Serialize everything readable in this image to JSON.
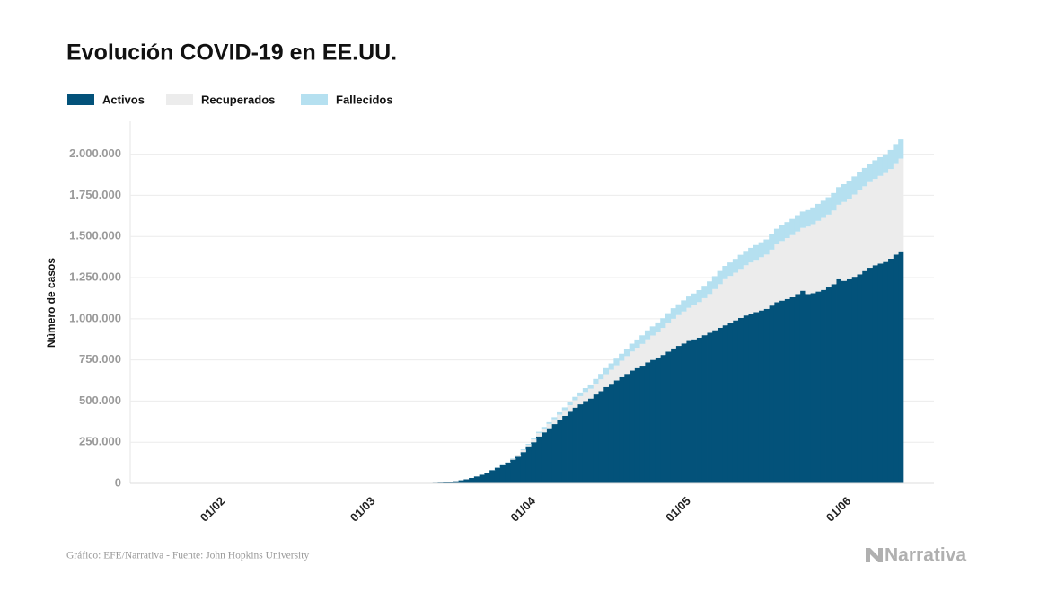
{
  "chart_data": {
    "type": "stacked_step_area",
    "title": "Evolución COVID-19 en EE.UU.",
    "y_label": "Número de casos",
    "source": "Gráfico: EFE/Narrativa - Fuente: John Hopkins University",
    "logo": "Narrativa",
    "grid": true,
    "ylim": [
      0,
      2200000
    ],
    "yticks": [
      0,
      {
        "value": 250000,
        "label": "250.000"
      },
      {
        "value": 500000,
        "label": "500.000"
      },
      {
        "value": 750000,
        "label": "750.000"
      },
      {
        "value": 1000000,
        "label": "1.000.000"
      },
      {
        "value": 1250000,
        "label": "1.250.000"
      },
      {
        "value": 1500000,
        "label": "1.500.000"
      },
      {
        "value": 1750000,
        "label": "1.750.000"
      },
      {
        "value": 2000000,
        "label": "2.000.000"
      }
    ],
    "categories": [
      null,
      null,
      null,
      null,
      null,
      null,
      null,
      null,
      null,
      null,
      "01/02",
      null,
      null,
      null,
      null,
      null,
      null,
      null,
      null,
      null,
      null,
      null,
      null,
      null,
      null,
      null,
      null,
      null,
      null,
      null,
      null,
      null,
      null,
      null,
      null,
      null,
      null,
      null,
      null,
      "01/03",
      null,
      null,
      null,
      null,
      null,
      null,
      null,
      null,
      null,
      null,
      null,
      null,
      null,
      null,
      null,
      null,
      null,
      null,
      null,
      null,
      null,
      null,
      null,
      null,
      null,
      null,
      null,
      null,
      null,
      null,
      "01/04",
      null,
      null,
      null,
      null,
      null,
      null,
      null,
      null,
      null,
      null,
      null,
      null,
      null,
      null,
      null,
      null,
      null,
      null,
      null,
      null,
      null,
      null,
      null,
      null,
      null,
      null,
      null,
      null,
      null,
      "01/05",
      null,
      null,
      null,
      null,
      null,
      null,
      null,
      null,
      null,
      null,
      null,
      null,
      null,
      null,
      null,
      null,
      null,
      null,
      null,
      null,
      null,
      null,
      null,
      null,
      null,
      null,
      null,
      null,
      null,
      null,
      "01/06",
      null,
      null,
      null,
      null,
      null,
      null,
      null,
      null,
      null,
      null,
      null,
      null
    ],
    "series": [
      {
        "name": "Activos",
        "color": "#03527a",
        "values": [
          1,
          1,
          2,
          2,
          5,
          5,
          5,
          5,
          5,
          6,
          7,
          8,
          11,
          11,
          11,
          11,
          11,
          11,
          11,
          11,
          12,
          12,
          13,
          13,
          13,
          13,
          13,
          13,
          13,
          13,
          13,
          32,
          32,
          32,
          46,
          46,
          46,
          49,
          53,
          65,
          90,
          110,
          140,
          200,
          250,
          390,
          500,
          560,
          900,
          1200,
          1600,
          2100,
          2700,
          3400,
          4500,
          6200,
          7700,
          13000,
          18800,
          24500,
          32700,
          42000,
          52000,
          64000,
          80000,
          95000,
          110000,
          126000,
          144000,
          162000,
          190000,
          220000,
          250000,
          285000,
          310000,
          335000,
          360000,
          385000,
          410000,
          435000,
          460000,
          480000,
          500000,
          515000,
          540000,
          560000,
          585000,
          605000,
          625000,
          645000,
          665000,
          685000,
          700000,
          715000,
          735000,
          750000,
          765000,
          780000,
          800000,
          820000,
          835000,
          850000,
          865000,
          875000,
          885000,
          900000,
          915000,
          930000,
          945000,
          960000,
          975000,
          990000,
          1005000,
          1020000,
          1030000,
          1040000,
          1050000,
          1060000,
          1080000,
          1100000,
          1110000,
          1120000,
          1130000,
          1150000,
          1170000,
          1150000,
          1155000,
          1165000,
          1175000,
          1190000,
          1210000,
          1240000,
          1230000,
          1240000,
          1255000,
          1270000,
          1290000,
          1310000,
          1325000,
          1335000,
          1345000,
          1365000,
          1390000,
          1410000
        ]
      },
      {
        "name": "Recuperados",
        "color": "#ececec",
        "values": [
          0,
          0,
          0,
          0,
          0,
          0,
          0,
          0,
          0,
          0,
          0,
          0,
          0,
          0,
          0,
          0,
          0,
          0,
          3,
          3,
          3,
          3,
          3,
          3,
          3,
          3,
          3,
          3,
          3,
          3,
          3,
          5,
          5,
          5,
          6,
          6,
          6,
          6,
          7,
          7,
          7,
          7,
          7,
          8,
          8,
          8,
          8,
          8,
          8,
          8,
          12,
          12,
          12,
          17,
          17,
          17,
          106,
          106,
          108,
          147,
          176,
          178,
          178,
          361,
          681,
          869,
          1072,
          2665,
          5644,
          7024,
          12000,
          14000,
          17000,
          20000,
          23000,
          26000,
          29000,
          32000,
          35000,
          40000,
          45000,
          50000,
          55000,
          60000,
          66000,
          72000,
          78000,
          85000,
          92000,
          100000,
          108000,
          116000,
          124000,
          132000,
          140000,
          148000,
          156000,
          164000,
          172000,
          180000,
          187000,
          194000,
          201000,
          208000,
          216000,
          225000,
          235000,
          250000,
          265000,
          280000,
          285000,
          290000,
          298000,
          305000,
          312000,
          318000,
          324000,
          330000,
          340000,
          352000,
          362000,
          370000,
          378000,
          380000,
          382000,
          410000,
          420000,
          430000,
          438000,
          443000,
          448000,
          453000,
          480000,
          490000,
          500000,
          510000,
          515000,
          520000,
          525000,
          533000,
          540000,
          545000,
          555000,
          563000
        ]
      },
      {
        "name": "Fallecidos",
        "color": "#b5e0f0",
        "values": [
          0,
          0,
          0,
          0,
          0,
          0,
          0,
          0,
          0,
          0,
          0,
          0,
          0,
          0,
          0,
          0,
          0,
          0,
          0,
          0,
          0,
          0,
          0,
          0,
          0,
          0,
          0,
          0,
          0,
          0,
          0,
          0,
          0,
          0,
          0,
          0,
          0,
          0,
          1,
          1,
          6,
          9,
          11,
          12,
          14,
          17,
          21,
          22,
          28,
          36,
          40,
          47,
          54,
          63,
          85,
          108,
          150,
          200,
          244,
          307,
          427,
          552,
          706,
          942,
          1209,
          1581,
          2026,
          2467,
          2978,
          3873,
          5000,
          6100,
          7200,
          8500,
          9600,
          10800,
          12900,
          14800,
          16700,
          18700,
          20600,
          22100,
          23600,
          25900,
          28300,
          32900,
          36800,
          38700,
          40700,
          42500,
          45100,
          47700,
          50000,
          52200,
          54300,
          55400,
          56800,
          59300,
          61700,
          63900,
          65800,
          67500,
          68900,
          70200,
          72600,
          75000,
          76900,
          78600,
          80200,
          81000,
          82100,
          83800,
          85500,
          87300,
          88800,
          90000,
          90900,
          91900,
          93400,
          94900,
          96400,
          97600,
          98700,
          99300,
          99800,
          100600,
          102100,
          103300,
          104500,
          105500,
          106200,
          106900,
          107900,
          108900,
          109900,
          110900,
          111600,
          112000,
          112900,
          113800,
          114700,
          115700,
          116500,
          117200
        ]
      }
    ]
  }
}
